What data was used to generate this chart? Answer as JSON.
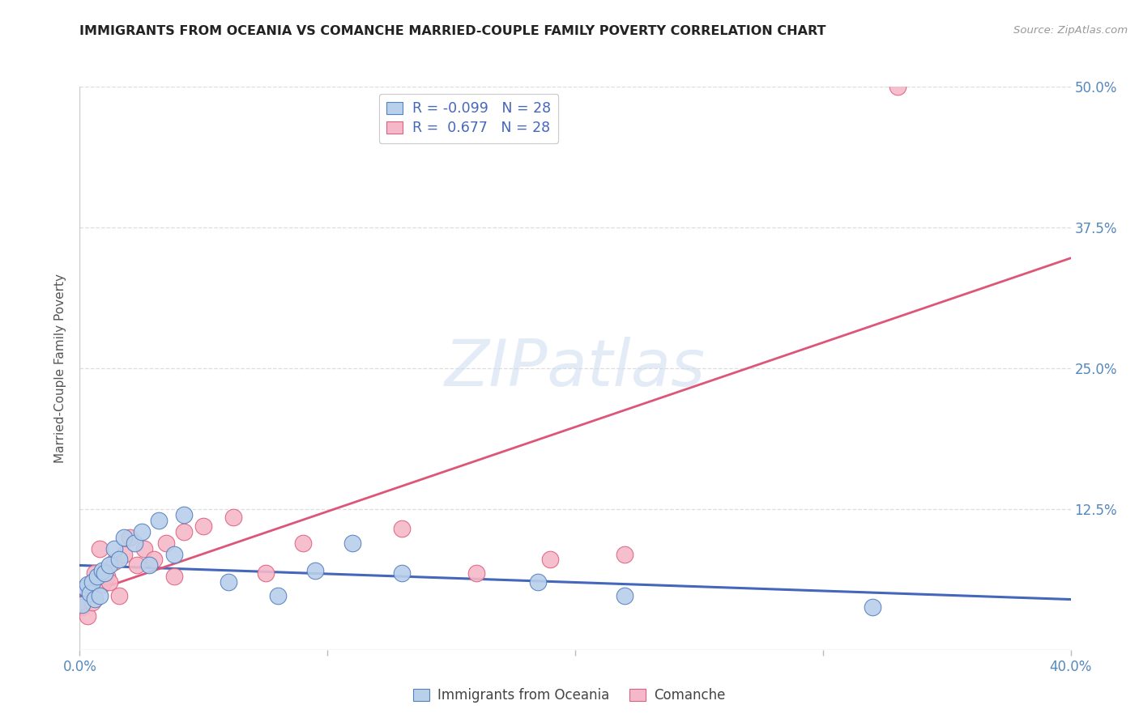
{
  "title": "IMMIGRANTS FROM OCEANIA VS COMANCHE MARRIED-COUPLE FAMILY POVERTY CORRELATION CHART",
  "source": "Source: ZipAtlas.com",
  "ylabel": "Married-Couple Family Poverty",
  "xlim": [
    0.0,
    0.4
  ],
  "ylim": [
    0.0,
    0.5
  ],
  "xticks": [
    0.0,
    0.1,
    0.2,
    0.3,
    0.4
  ],
  "xticklabels": [
    "0.0%",
    "",
    "",
    "",
    "40.0%"
  ],
  "yticks": [
    0.0,
    0.125,
    0.25,
    0.375,
    0.5
  ],
  "yticklabels": [
    "",
    "12.5%",
    "25.0%",
    "37.5%",
    "50.0%"
  ],
  "legend_labels": [
    "Immigrants from Oceania",
    "Comanche"
  ],
  "r_oceania": "-0.099",
  "n_oceania": "28",
  "r_comanche": "0.677",
  "n_comanche": "28",
  "blue_fill": "#b8d0ea",
  "blue_edge": "#5580c0",
  "pink_fill": "#f5b8c8",
  "pink_edge": "#e06080",
  "blue_line": "#4466bb",
  "pink_line": "#dd5577",
  "watermark": "ZIPatlas",
  "oceania_x": [
    0.001,
    0.002,
    0.003,
    0.004,
    0.005,
    0.006,
    0.007,
    0.008,
    0.009,
    0.01,
    0.012,
    0.014,
    0.016,
    0.018,
    0.022,
    0.025,
    0.028,
    0.032,
    0.038,
    0.042,
    0.06,
    0.08,
    0.095,
    0.11,
    0.13,
    0.185,
    0.22,
    0.32
  ],
  "oceania_y": [
    0.04,
    0.055,
    0.058,
    0.05,
    0.06,
    0.045,
    0.065,
    0.048,
    0.07,
    0.068,
    0.075,
    0.09,
    0.08,
    0.1,
    0.095,
    0.105,
    0.075,
    0.115,
    0.085,
    0.12,
    0.06,
    0.048,
    0.07,
    0.095,
    0.068,
    0.06,
    0.048,
    0.038
  ],
  "comanche_x": [
    0.001,
    0.002,
    0.003,
    0.005,
    0.006,
    0.008,
    0.009,
    0.011,
    0.012,
    0.014,
    0.016,
    0.018,
    0.02,
    0.023,
    0.026,
    0.03,
    0.035,
    0.038,
    0.042,
    0.05,
    0.062,
    0.075,
    0.09,
    0.13,
    0.16,
    0.19,
    0.22,
    0.33
  ],
  "comanche_y": [
    0.038,
    0.055,
    0.03,
    0.042,
    0.068,
    0.09,
    0.058,
    0.065,
    0.06,
    0.078,
    0.048,
    0.085,
    0.1,
    0.075,
    0.09,
    0.08,
    0.095,
    0.065,
    0.105,
    0.11,
    0.118,
    0.068,
    0.095,
    0.108,
    0.068,
    0.08,
    0.085,
    0.5
  ]
}
